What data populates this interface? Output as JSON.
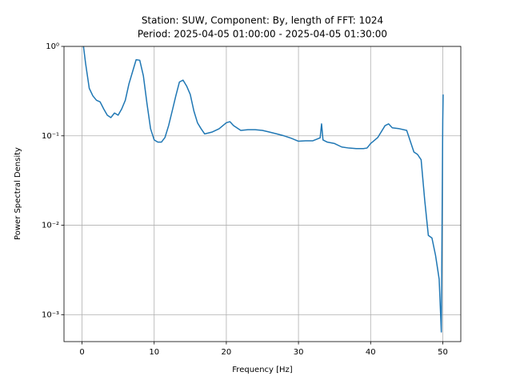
{
  "chart_data": {
    "type": "line",
    "title": "Station: SUW, Component: By, length of FFT: 1024",
    "subtitle": "Period: 2025-04-05 01:00:00 - 2025-04-05 01:30:00",
    "x_label": "Frequency [Hz]",
    "y_label": "Power Spectral Density",
    "log_y": true,
    "grid": true,
    "xlim": [
      -2.5,
      52.5
    ],
    "xticks": [
      0,
      10,
      20,
      30,
      40,
      50
    ],
    "ylim": [
      0.0005,
      1
    ],
    "yticks": [
      {
        "value": 1,
        "label": "10⁰"
      },
      {
        "value": 0.1,
        "label": "10⁻¹"
      },
      {
        "value": 0.01,
        "label": "10⁻²"
      },
      {
        "value": 0.001,
        "label": "10⁻³"
      }
    ],
    "series": [
      {
        "name": "By",
        "color": "#1f77b4",
        "x": [
          0.2,
          0.5,
          1,
          1.5,
          2,
          2.5,
          3,
          3.5,
          4,
          4.5,
          5,
          5.5,
          6,
          6.5,
          7,
          7.5,
          8,
          8.5,
          9,
          9.5,
          10,
          10.5,
          11,
          11.5,
          12,
          12.5,
          13,
          13.5,
          14,
          14.5,
          15,
          15.5,
          16,
          16.5,
          17,
          18,
          19,
          20,
          20.5,
          21,
          22,
          23,
          24,
          25,
          26,
          27,
          28,
          29,
          30,
          31,
          32,
          33,
          33.2,
          33.4,
          34,
          35,
          36,
          37,
          38,
          39,
          39.5,
          40,
          41,
          42,
          42.5,
          43,
          44,
          45,
          46,
          46.5,
          47,
          47.5,
          48,
          48.5,
          49,
          49.5,
          49.8,
          50,
          50.05
        ],
        "values": [
          1.0,
          0.64,
          0.34,
          0.28,
          0.25,
          0.24,
          0.2,
          0.17,
          0.16,
          0.18,
          0.17,
          0.2,
          0.25,
          0.38,
          0.52,
          0.71,
          0.7,
          0.47,
          0.23,
          0.12,
          0.09,
          0.085,
          0.085,
          0.096,
          0.13,
          0.19,
          0.28,
          0.4,
          0.42,
          0.36,
          0.29,
          0.19,
          0.14,
          0.12,
          0.105,
          0.11,
          0.12,
          0.14,
          0.144,
          0.13,
          0.115,
          0.117,
          0.117,
          0.115,
          0.11,
          0.105,
          0.1,
          0.094,
          0.087,
          0.088,
          0.088,
          0.095,
          0.136,
          0.09,
          0.085,
          0.082,
          0.075,
          0.073,
          0.072,
          0.072,
          0.073,
          0.082,
          0.096,
          0.13,
          0.136,
          0.123,
          0.12,
          0.115,
          0.066,
          0.062,
          0.054,
          0.019,
          0.0077,
          0.0072,
          0.0046,
          0.0025,
          0.00064,
          0.15,
          0.29
        ]
      }
    ]
  }
}
